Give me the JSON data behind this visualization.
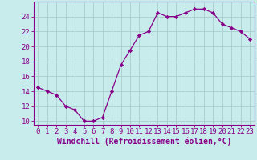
{
  "x": [
    0,
    1,
    2,
    3,
    4,
    5,
    6,
    7,
    8,
    9,
    10,
    11,
    12,
    13,
    14,
    15,
    16,
    17,
    18,
    19,
    20,
    21,
    22,
    23
  ],
  "y": [
    14.5,
    14.0,
    13.5,
    12.0,
    11.5,
    10.0,
    10.0,
    10.5,
    14.0,
    17.5,
    19.5,
    21.5,
    22.0,
    24.5,
    24.0,
    24.0,
    24.5,
    25.0,
    25.0,
    24.5,
    23.0,
    22.5,
    22.0,
    21.0
  ],
  "line_color": "#880088",
  "marker": "D",
  "marker_size": 2.2,
  "bg_color": "#c8ecec",
  "grid_color": "#aacece",
  "axis_color": "#880088",
  "tick_color": "#880088",
  "xlabel": "Windchill (Refroidissement éolien,°C)",
  "ylabel": "",
  "ylim": [
    9.5,
    26.0
  ],
  "xlim": [
    -0.5,
    23.5
  ],
  "yticks": [
    10,
    12,
    14,
    16,
    18,
    20,
    22,
    24
  ],
  "xticks": [
    0,
    1,
    2,
    3,
    4,
    5,
    6,
    7,
    8,
    9,
    10,
    11,
    12,
    13,
    14,
    15,
    16,
    17,
    18,
    19,
    20,
    21,
    22,
    23
  ],
  "font_size": 6.5,
  "label_font_size": 7.0
}
